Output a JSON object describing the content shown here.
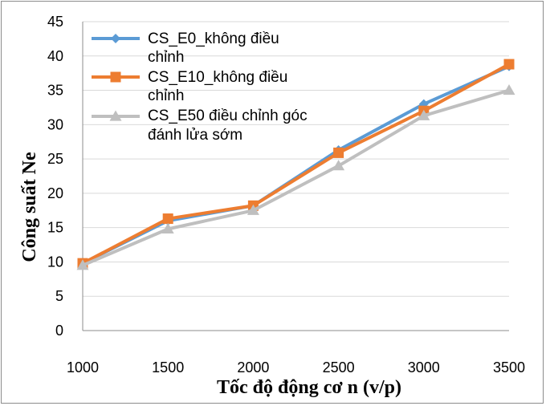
{
  "chart_data": {
    "type": "line",
    "xlabel": "Tốc độ động cơ n (v/p)",
    "ylabel": "Công suất Ne",
    "x": [
      1000,
      1500,
      2000,
      2500,
      3000,
      3500
    ],
    "ylim": [
      0,
      45
    ],
    "yticks": [
      0,
      5,
      10,
      15,
      20,
      25,
      30,
      35,
      40,
      45
    ],
    "grid": "horizontal",
    "legend_position": "top-left",
    "series": [
      {
        "name_lines": [
          "CS_E0_không điều",
          "chỉnh"
        ],
        "name": "CS_E0_không điều chỉnh",
        "color": "#5b9bd5",
        "marker": "diamond",
        "values": [
          9.8,
          16.0,
          18.2,
          26.3,
          33.0,
          38.5
        ]
      },
      {
        "name_lines": [
          "CS_E10_không điều",
          "chỉnh"
        ],
        "name": "CS_E10_không điều chỉnh",
        "color": "#ed7d31",
        "marker": "square",
        "values": [
          9.8,
          16.3,
          18.2,
          25.9,
          32.0,
          38.8
        ]
      },
      {
        "name_lines": [
          "CS_E50 điều chỉnh góc",
          "đánh lửa sớm"
        ],
        "name": "CS_E50 điều chỉnh góc đánh lửa sớm",
        "color": "#bfbfbf",
        "marker": "triangle",
        "values": [
          9.5,
          14.8,
          17.5,
          24.0,
          31.3,
          35.0
        ]
      }
    ]
  }
}
